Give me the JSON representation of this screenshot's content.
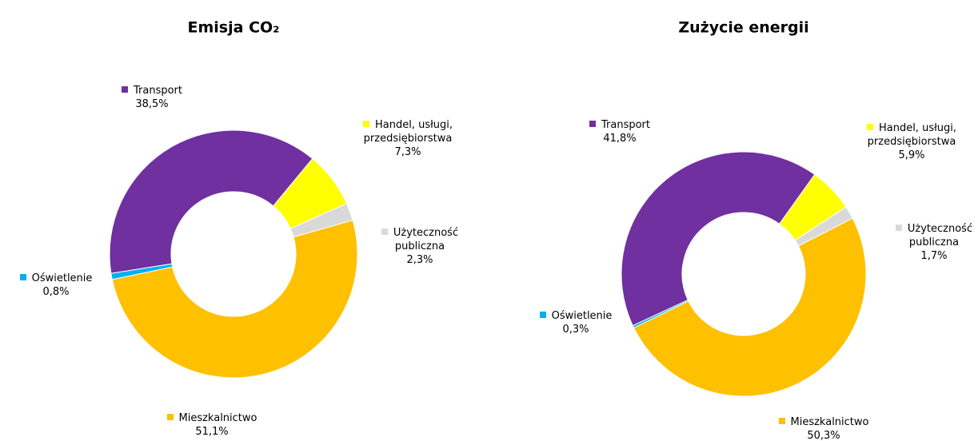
{
  "chart_data": [
    {
      "type": "donut",
      "title": "Emisja CO₂",
      "categories": [
        "Transport",
        "Handel, usługi, przedsiębiorstwa",
        "Użyteczność publiczna",
        "Mieszkalnictwo",
        "Oświetlenie"
      ],
      "values": [
        38.5,
        7.3,
        2.3,
        51.1,
        0.8
      ],
      "value_labels": [
        "38,5%",
        "7,3%",
        "2,3%",
        "51,1%",
        "0,8%"
      ],
      "colors": [
        "#7030a0",
        "#ffff00",
        "#d9d9d9",
        "#ffc000",
        "#00b0f0"
      ]
    },
    {
      "type": "donut",
      "title": "Zużycie energii",
      "categories": [
        "Transport",
        "Handel, usługi, przedsiębiorstwa",
        "Użyteczność publiczna",
        "Mieszkalnictwo",
        "Oświetlenie"
      ],
      "values": [
        41.8,
        5.9,
        1.7,
        50.3,
        0.3
      ],
      "value_labels": [
        "41,8%",
        "5,9%",
        "1,7%",
        "50,3%",
        "0,3%"
      ],
      "colors": [
        "#7030a0",
        "#ffff00",
        "#d9d9d9",
        "#ffc000",
        "#00b0f0"
      ]
    }
  ]
}
